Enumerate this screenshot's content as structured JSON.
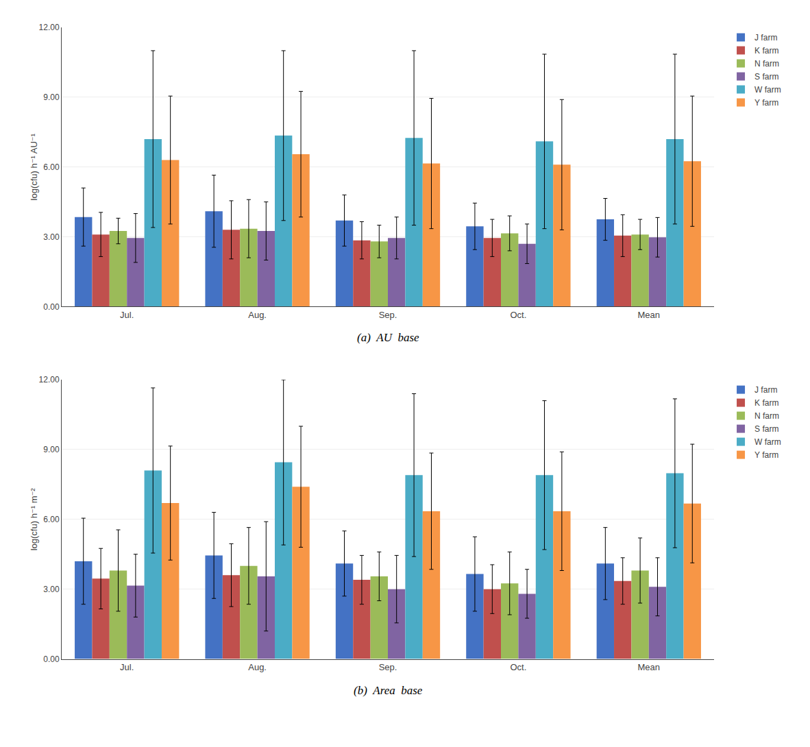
{
  "chart_data": [
    {
      "type": "bar",
      "title": "(a)  AU  base",
      "ylabel": "log(cfu) h⁻¹ AU⁻¹",
      "categories": [
        "Jul.",
        "Aug.",
        "Sep.",
        "Oct.",
        "Mean"
      ],
      "series": [
        {
          "name": "J farm",
          "color": "#4472C4",
          "values": [
            3.85,
            4.1,
            3.7,
            3.45,
            3.75
          ],
          "errors": [
            1.25,
            1.55,
            1.1,
            1.0,
            0.9
          ]
        },
        {
          "name": "K farm",
          "color": "#C0504D",
          "values": [
            3.1,
            3.3,
            2.85,
            2.95,
            3.05
          ],
          "errors": [
            0.95,
            1.25,
            0.8,
            0.8,
            0.9
          ]
        },
        {
          "name": "N farm",
          "color": "#9BBB59",
          "values": [
            3.25,
            3.35,
            2.8,
            3.15,
            3.1
          ],
          "errors": [
            0.55,
            1.25,
            0.7,
            0.75,
            0.65
          ]
        },
        {
          "name": "S farm",
          "color": "#8064A2",
          "values": [
            2.95,
            3.25,
            2.95,
            2.7,
            2.98
          ],
          "errors": [
            1.05,
            1.25,
            0.9,
            0.85,
            0.85
          ]
        },
        {
          "name": "W farm",
          "color": "#4BACC6",
          "values": [
            7.2,
            7.35,
            7.25,
            7.1,
            7.2
          ],
          "errors": [
            3.8,
            3.65,
            3.75,
            3.75,
            3.65
          ]
        },
        {
          "name": "Y farm",
          "color": "#F79646",
          "values": [
            6.3,
            6.55,
            6.15,
            6.1,
            6.25
          ],
          "errors": [
            2.75,
            2.7,
            2.8,
            2.8,
            2.8
          ]
        }
      ],
      "ylim": [
        0,
        12
      ],
      "yticks": [
        {
          "value": 0,
          "label": "0.00"
        },
        {
          "value": 3,
          "label": "3.00"
        },
        {
          "value": 6,
          "label": "6.00"
        },
        {
          "value": 9,
          "label": "9.00"
        },
        {
          "value": 12,
          "label": "12.00"
        }
      ],
      "grid": true,
      "legend": "right"
    },
    {
      "type": "bar",
      "title": "(b)  Area  base",
      "ylabel": "log(cfu) h⁻¹ m⁻²",
      "categories": [
        "Jul.",
        "Aug.",
        "Sep.",
        "Oct.",
        "Mean"
      ],
      "series": [
        {
          "name": "J farm",
          "color": "#4472C4",
          "values": [
            4.2,
            4.45,
            4.1,
            3.65,
            4.1
          ],
          "errors": [
            1.85,
            1.85,
            1.4,
            1.6,
            1.55
          ]
        },
        {
          "name": "K farm",
          "color": "#C0504D",
          "values": [
            3.45,
            3.6,
            3.4,
            3.0,
            3.35
          ],
          "errors": [
            1.3,
            1.35,
            1.05,
            1.05,
            1.0
          ]
        },
        {
          "name": "N farm",
          "color": "#9BBB59",
          "values": [
            3.8,
            4.0,
            3.55,
            3.25,
            3.8
          ],
          "errors": [
            1.75,
            1.65,
            1.05,
            1.35,
            1.4
          ]
        },
        {
          "name": "S farm",
          "color": "#8064A2",
          "values": [
            3.15,
            3.55,
            3.0,
            2.8,
            3.1
          ],
          "errors": [
            1.35,
            2.35,
            1.45,
            1.05,
            1.25
          ]
        },
        {
          "name": "W farm",
          "color": "#4BACC6",
          "values": [
            8.1,
            8.45,
            7.9,
            7.9,
            7.98
          ],
          "errors": [
            3.55,
            3.55,
            3.5,
            3.2,
            3.2
          ]
        },
        {
          "name": "Y farm",
          "color": "#F79646",
          "values": [
            6.7,
            7.4,
            6.35,
            6.35,
            6.68
          ],
          "errors": [
            2.45,
            2.6,
            2.5,
            2.55,
            2.55
          ]
        }
      ],
      "ylim": [
        0,
        12
      ],
      "yticks": [
        {
          "value": 0,
          "label": "0.00"
        },
        {
          "value": 3,
          "label": "3.00"
        },
        {
          "value": 6,
          "label": "6.00"
        },
        {
          "value": 9,
          "label": "9.00"
        },
        {
          "value": 12,
          "label": "12.00"
        }
      ],
      "grid": true,
      "legend": "right"
    }
  ]
}
